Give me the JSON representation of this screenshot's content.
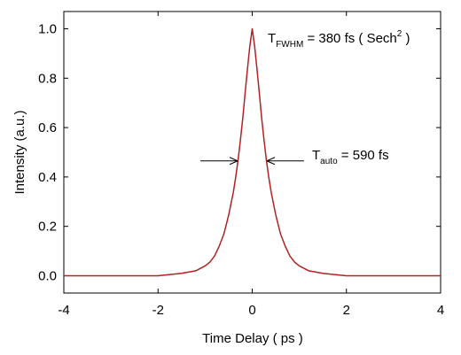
{
  "chart_data": {
    "type": "line",
    "xlabel": "Time Delay  ( ps )",
    "ylabel": "Intensity (a.u.)",
    "xlim": [
      -4.0,
      4.0
    ],
    "ylim": [
      -0.07,
      1.07
    ],
    "x_ticks": [
      -4,
      -2,
      0,
      2,
      4
    ],
    "x_tick_labels": [
      "-4",
      "-2",
      "0",
      "2",
      "4"
    ],
    "y_ticks": [
      0.0,
      0.2,
      0.4,
      0.6,
      0.8,
      1.0
    ],
    "y_tick_labels": [
      "0.0",
      "0.2",
      "0.4",
      "0.6",
      "0.8",
      "1.0"
    ],
    "grid": false,
    "line_color": "#b22222",
    "series": [
      {
        "x": [
          -4.0,
          -3.0,
          -2.0,
          -1.5,
          -1.2,
          -1.0,
          -0.9,
          -0.8,
          -0.7,
          -0.6,
          -0.5,
          -0.4,
          -0.35,
          -0.3,
          -0.25,
          -0.2,
          -0.15,
          -0.1,
          -0.05,
          0.0,
          0.05,
          0.1,
          0.15,
          0.2,
          0.25,
          0.3,
          0.35,
          0.4,
          0.5,
          0.6,
          0.7,
          0.8,
          0.9,
          1.0,
          1.2,
          1.5,
          2.0,
          3.0,
          4.0
        ],
        "y": [
          0.0,
          0.0,
          0.0,
          0.01,
          0.02,
          0.04,
          0.055,
          0.08,
          0.12,
          0.17,
          0.245,
          0.34,
          0.4,
          0.47,
          0.55,
          0.64,
          0.74,
          0.84,
          0.93,
          1.0,
          0.93,
          0.84,
          0.74,
          0.64,
          0.55,
          0.47,
          0.4,
          0.34,
          0.245,
          0.17,
          0.12,
          0.08,
          0.055,
          0.04,
          0.02,
          0.01,
          0.0,
          0.0,
          0.0
        ]
      }
    ],
    "annotations": {
      "fwhm": {
        "symbol": "T",
        "subscript": "FWHM",
        "text": " = 380 fs ( Sech",
        "superscript": "2",
        "close": " )"
      },
      "auto": {
        "symbol": "T",
        "subscript": "auto",
        "text": " = 590 fs",
        "arrow_y": 0.465,
        "arrow_left_x": -0.31,
        "arrow_right_x": 0.31
      }
    }
  }
}
